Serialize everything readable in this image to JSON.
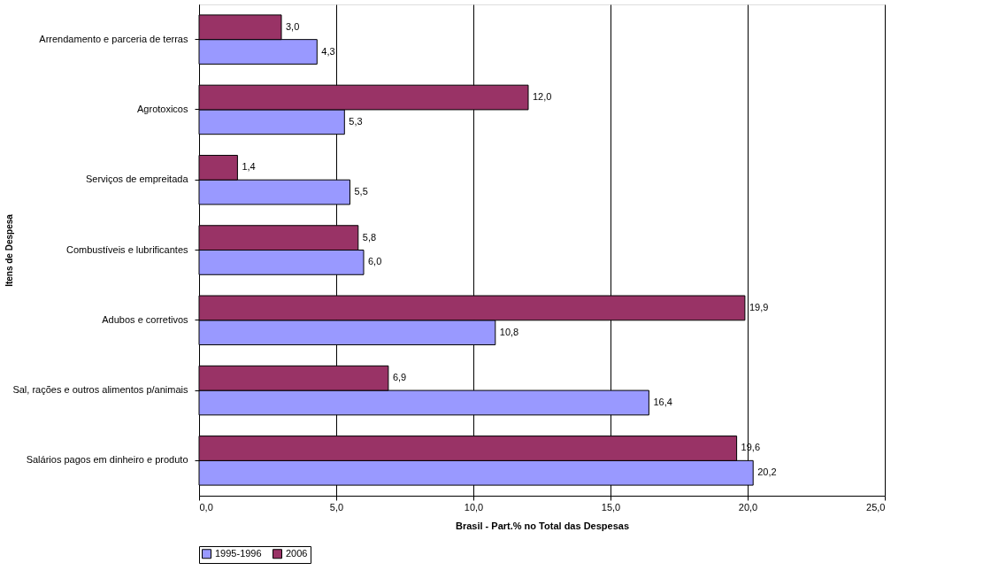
{
  "chart_data": {
    "type": "bar",
    "orientation": "horizontal",
    "xlabel": "Brasil - Part.% no Total das Despesas",
    "ylabel": "Itens de Despesa",
    "categories": [
      "Arrendamento e parceria de terras",
      "Agrotoxicos",
      "Serviços de empreitada",
      "Combustíveis e lubrificantes",
      "Adubos e corretivos",
      "Sal, rações e outros alimentos p/animais",
      "Salários pagos em dinheiro e produto"
    ],
    "series": [
      {
        "name": "1995-1996",
        "color": "#9999ff",
        "values": [
          4.3,
          5.3,
          5.5,
          6.0,
          10.8,
          16.4,
          20.2
        ],
        "value_labels": [
          "4,3",
          "5,3",
          "5,5",
          "6,0",
          "10,8",
          "16,4",
          "20,2"
        ]
      },
      {
        "name": "2006",
        "color": "#993366",
        "values": [
          3.0,
          12.0,
          1.4,
          5.8,
          19.9,
          6.9,
          19.6
        ],
        "value_labels": [
          "3,0",
          "12,0",
          "1,4",
          "5,8",
          "19,9",
          "6,9",
          "19,6"
        ]
      }
    ],
    "xlim": [
      0,
      25
    ],
    "xticks": [
      {
        "value": 0,
        "label": "0,0"
      },
      {
        "value": 5,
        "label": "5,0"
      },
      {
        "value": 10,
        "label": "10,0"
      },
      {
        "value": 15,
        "label": "15,0"
      },
      {
        "value": 20,
        "label": "20,0"
      },
      {
        "value": 25,
        "label": "25,0"
      }
    ],
    "grid": "x",
    "legend": "bottom"
  }
}
